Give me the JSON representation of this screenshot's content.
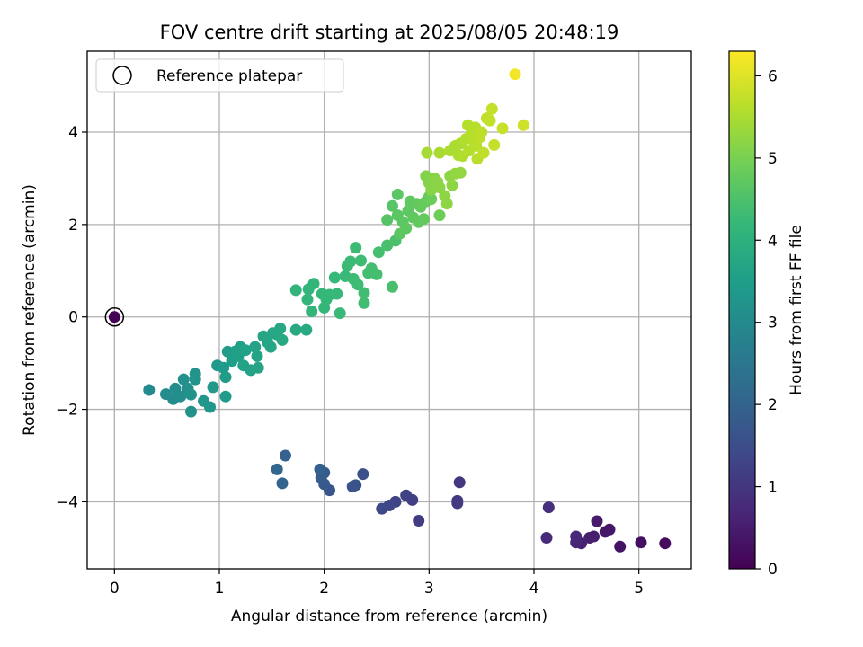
{
  "chart_data": {
    "type": "scatter",
    "title": "FOV centre drift starting at 2025/08/05 20:48:19",
    "xlabel": "Angular distance from reference (arcmin)",
    "ylabel": "Rotation from reference (arcmin)",
    "xlim": [
      -0.26,
      5.5
    ],
    "ylim": [
      -5.45,
      5.75
    ],
    "xticks": [
      0,
      1,
      2,
      3,
      4,
      5
    ],
    "xtick_labels": [
      "0",
      "1",
      "2",
      "3",
      "4",
      "5"
    ],
    "yticks": [
      -4,
      -2,
      0,
      2,
      4
    ],
    "ytick_labels": [
      "−4",
      "−2",
      "0",
      "2",
      "4"
    ],
    "grid": true,
    "legend": {
      "position": "top-left",
      "entries": [
        "Reference platepar"
      ]
    },
    "reference_point": {
      "x": 0,
      "y": 0,
      "hours": 0
    },
    "colorbar": {
      "label": "Hours from first FF file",
      "colormap": "viridis",
      "range": [
        0,
        6.3
      ],
      "ticks": [
        0,
        1,
        2,
        3,
        4,
        5,
        6
      ],
      "tick_labels": [
        "0",
        "1",
        "2",
        "3",
        "4",
        "5",
        "6"
      ],
      "stops": [
        "#440154",
        "#482878",
        "#3e4989",
        "#31688e",
        "#26828e",
        "#1f9e89",
        "#35b779",
        "#6ece58",
        "#b5de2b",
        "#fde725"
      ]
    },
    "series": [
      {
        "points": [
          [
            5.25,
            -4.9,
            0.2
          ],
          [
            5.02,
            -4.88,
            0.25
          ],
          [
            4.82,
            -4.97,
            0.3
          ],
          [
            4.72,
            -4.6,
            0.4
          ],
          [
            4.68,
            -4.65,
            0.42
          ],
          [
            4.6,
            -4.42,
            0.45
          ],
          [
            4.57,
            -4.75,
            0.5
          ],
          [
            4.53,
            -4.78,
            0.55
          ],
          [
            4.45,
            -4.9,
            0.6
          ],
          [
            4.4,
            -4.88,
            0.65
          ],
          [
            4.4,
            -4.75,
            0.7
          ],
          [
            4.12,
            -4.78,
            0.75
          ],
          [
            4.14,
            -4.12,
            0.85
          ],
          [
            3.29,
            -3.58,
            1.0
          ],
          [
            3.27,
            -3.98,
            1.05
          ],
          [
            3.27,
            -4.03,
            1.1
          ],
          [
            2.9,
            -4.41,
            1.15
          ],
          [
            2.84,
            -3.96,
            1.2
          ],
          [
            2.78,
            -3.86,
            1.25
          ],
          [
            2.68,
            -4.0,
            1.3
          ],
          [
            2.62,
            -4.08,
            1.35
          ],
          [
            2.55,
            -4.15,
            1.4
          ],
          [
            2.37,
            -3.4,
            1.55
          ],
          [
            2.3,
            -3.64,
            1.6
          ],
          [
            2.27,
            -3.67,
            1.62
          ],
          [
            2.05,
            -3.75,
            1.7
          ],
          [
            2.0,
            -3.62,
            1.75
          ],
          [
            2.0,
            -3.37,
            1.8
          ],
          [
            1.97,
            -3.48,
            1.85
          ],
          [
            1.96,
            -3.3,
            1.9
          ],
          [
            1.63,
            -3.0,
            1.95
          ],
          [
            1.6,
            -3.6,
            2.0
          ],
          [
            1.55,
            -3.3,
            2.05
          ],
          [
            0.33,
            -1.58,
            3.0
          ],
          [
            0.49,
            -1.67,
            3.05
          ],
          [
            0.56,
            -1.78,
            3.05
          ],
          [
            0.58,
            -1.55,
            3.1
          ],
          [
            0.63,
            -1.72,
            3.1
          ],
          [
            0.66,
            -1.35,
            3.15
          ],
          [
            0.7,
            -1.55,
            3.15
          ],
          [
            0.73,
            -1.68,
            3.2
          ],
          [
            0.73,
            -2.05,
            3.2
          ],
          [
            0.77,
            -1.35,
            3.25
          ],
          [
            0.77,
            -1.23,
            3.25
          ],
          [
            0.85,
            -1.82,
            3.3
          ],
          [
            0.91,
            -1.95,
            3.3
          ],
          [
            0.94,
            -1.52,
            3.35
          ],
          [
            0.98,
            -1.05,
            3.35
          ],
          [
            1.04,
            -1.1,
            3.4
          ],
          [
            1.06,
            -1.72,
            3.4
          ],
          [
            1.06,
            -1.3,
            3.45
          ],
          [
            1.08,
            -0.75,
            3.45
          ],
          [
            1.12,
            -0.95,
            3.5
          ],
          [
            1.15,
            -0.75,
            3.5
          ],
          [
            1.18,
            -0.85,
            3.55
          ],
          [
            1.2,
            -0.65,
            3.55
          ],
          [
            1.23,
            -1.05,
            3.6
          ],
          [
            1.25,
            -0.72,
            3.6
          ],
          [
            1.3,
            -1.15,
            3.62
          ],
          [
            1.34,
            -0.65,
            3.65
          ],
          [
            1.36,
            -0.85,
            3.65
          ],
          [
            1.37,
            -1.1,
            3.67
          ],
          [
            1.42,
            -0.42,
            3.7
          ],
          [
            1.46,
            -0.55,
            3.7
          ],
          [
            1.49,
            -0.65,
            3.72
          ],
          [
            1.51,
            -0.35,
            3.72
          ],
          [
            1.55,
            -0.38,
            3.75
          ],
          [
            1.58,
            -0.25,
            3.75
          ],
          [
            1.6,
            -0.5,
            3.78
          ],
          [
            1.73,
            -0.28,
            3.8
          ],
          [
            1.83,
            -0.28,
            3.82
          ],
          [
            1.73,
            0.58,
            4.1
          ],
          [
            1.84,
            0.38,
            4.12
          ],
          [
            1.85,
            0.6,
            4.12
          ],
          [
            1.88,
            0.12,
            4.15
          ],
          [
            1.9,
            0.72,
            4.15
          ],
          [
            1.98,
            0.5,
            4.18
          ],
          [
            2.0,
            0.2,
            4.18
          ],
          [
            2.02,
            0.38,
            4.2
          ],
          [
            2.05,
            0.48,
            4.2
          ],
          [
            2.1,
            0.85,
            4.22
          ],
          [
            2.12,
            0.5,
            4.22
          ],
          [
            2.15,
            0.08,
            4.25
          ],
          [
            2.2,
            0.88,
            4.25
          ],
          [
            2.22,
            1.1,
            4.28
          ],
          [
            2.25,
            1.2,
            4.28
          ],
          [
            2.28,
            0.82,
            4.3
          ],
          [
            2.3,
            1.5,
            4.3
          ],
          [
            2.32,
            0.7,
            4.32
          ],
          [
            2.35,
            1.22,
            4.32
          ],
          [
            2.38,
            0.52,
            4.35
          ],
          [
            2.38,
            0.3,
            4.35
          ],
          [
            2.42,
            0.95,
            4.38
          ],
          [
            2.45,
            1.05,
            4.38
          ],
          [
            2.5,
            0.92,
            4.4
          ],
          [
            2.52,
            1.4,
            4.4
          ],
          [
            2.6,
            1.55,
            4.45
          ],
          [
            2.65,
            0.65,
            4.45
          ],
          [
            2.68,
            1.65,
            4.48
          ],
          [
            2.6,
            2.1,
            4.6
          ],
          [
            2.65,
            2.4,
            4.62
          ],
          [
            2.7,
            2.65,
            4.65
          ],
          [
            2.7,
            2.2,
            4.65
          ],
          [
            2.72,
            1.8,
            4.68
          ],
          [
            2.75,
            2.05,
            4.68
          ],
          [
            2.78,
            1.92,
            4.7
          ],
          [
            2.8,
            2.3,
            4.7
          ],
          [
            2.82,
            2.5,
            4.72
          ],
          [
            2.85,
            2.15,
            4.72
          ],
          [
            2.88,
            2.45,
            4.75
          ],
          [
            2.9,
            2.05,
            4.75
          ],
          [
            2.92,
            2.38,
            4.78
          ],
          [
            2.95,
            2.12,
            4.78
          ],
          [
            2.97,
            2.5,
            4.8
          ],
          [
            3.0,
            2.6,
            4.82
          ],
          [
            3.02,
            2.55,
            4.85
          ],
          [
            3.1,
            2.2,
            4.88
          ],
          [
            2.97,
            3.05,
            5.1
          ],
          [
            3.0,
            2.9,
            5.12
          ],
          [
            3.02,
            2.75,
            5.15
          ],
          [
            3.05,
            3.0,
            5.15
          ],
          [
            3.08,
            2.92,
            5.18
          ],
          [
            3.1,
            2.8,
            5.18
          ],
          [
            3.15,
            2.62,
            5.2
          ],
          [
            3.17,
            2.45,
            5.2
          ],
          [
            3.2,
            3.05,
            5.22
          ],
          [
            3.22,
            2.85,
            5.22
          ],
          [
            3.25,
            3.1,
            5.25
          ],
          [
            3.3,
            3.12,
            5.25
          ],
          [
            2.98,
            3.55,
            5.45
          ],
          [
            3.1,
            3.55,
            5.48
          ],
          [
            3.2,
            3.6,
            5.5
          ],
          [
            3.25,
            3.7,
            5.5
          ],
          [
            3.28,
            3.5,
            5.52
          ],
          [
            3.3,
            3.75,
            5.52
          ],
          [
            3.32,
            3.48,
            5.55
          ],
          [
            3.35,
            3.85,
            5.55
          ],
          [
            3.37,
            4.15,
            5.58
          ],
          [
            3.38,
            3.6,
            5.58
          ],
          [
            3.4,
            3.95,
            5.6
          ],
          [
            3.42,
            4.05,
            5.6
          ],
          [
            3.43,
            3.8,
            5.62
          ],
          [
            3.44,
            4.1,
            5.62
          ],
          [
            3.45,
            3.7,
            5.65
          ],
          [
            3.46,
            3.42,
            5.65
          ],
          [
            3.48,
            3.88,
            5.68
          ],
          [
            3.5,
            4.0,
            5.68
          ],
          [
            3.52,
            3.55,
            5.7
          ],
          [
            3.55,
            4.3,
            5.7
          ],
          [
            3.58,
            4.25,
            5.72
          ],
          [
            3.6,
            4.5,
            5.75
          ],
          [
            3.62,
            3.72,
            5.75
          ],
          [
            3.7,
            4.08,
            5.78
          ],
          [
            3.82,
            5.25,
            6.2
          ],
          [
            3.9,
            4.15,
            5.85
          ]
        ]
      }
    ]
  }
}
